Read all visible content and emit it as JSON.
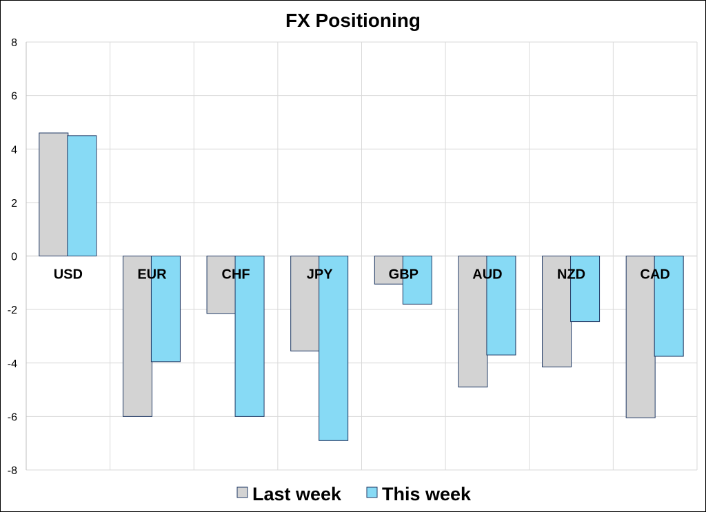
{
  "chart_data": {
    "type": "bar",
    "title": "FX Positioning",
    "xlabel": "",
    "ylabel": "",
    "ylim": [
      -8,
      8
    ],
    "yticks": [
      8,
      6,
      4,
      2,
      0,
      -2,
      -4,
      -6,
      -8
    ],
    "grid": true,
    "legend_position": "bottom",
    "categories": [
      "USD",
      "EUR",
      "CHF",
      "JPY",
      "GBP",
      "AUD",
      "NZD",
      "CAD"
    ],
    "series": [
      {
        "name": "Last week",
        "color": "#d3d3d3",
        "values": [
          4.6,
          -6.0,
          -2.15,
          -3.55,
          -1.05,
          -4.9,
          -4.15,
          -6.05
        ]
      },
      {
        "name": "This week",
        "color": "#87daf5",
        "values": [
          4.5,
          -3.95,
          -6.0,
          -6.9,
          -1.8,
          -3.7,
          -2.45,
          -3.75
        ]
      }
    ],
    "bar_outline_color": "#1f3864",
    "grid_color": "#d9d9d9"
  }
}
